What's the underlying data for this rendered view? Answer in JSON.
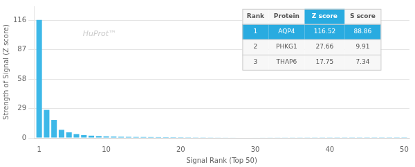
{
  "chart_data": {
    "type": "bar",
    "x": [
      1,
      2,
      3,
      4,
      5,
      6,
      7,
      8,
      9,
      10,
      11,
      12,
      13,
      14,
      15,
      16,
      17,
      18,
      19,
      20,
      21,
      22,
      23,
      24,
      25,
      26,
      27,
      28,
      29,
      30,
      31,
      32,
      33,
      34,
      35,
      36,
      37,
      38,
      39,
      40,
      41,
      42,
      43,
      44,
      45,
      46,
      47,
      48,
      49,
      50
    ],
    "values": [
      116.52,
      27.66,
      17.75,
      8.0,
      5.5,
      3.8,
      2.8,
      2.2,
      1.8,
      1.5,
      1.3,
      1.1,
      1.0,
      0.9,
      0.85,
      0.8,
      0.75,
      0.7,
      0.65,
      0.6,
      0.55,
      0.5,
      0.48,
      0.45,
      0.42,
      0.4,
      0.38,
      0.36,
      0.34,
      0.32,
      0.3,
      0.28,
      0.27,
      0.26,
      0.25,
      0.24,
      0.23,
      0.22,
      0.21,
      0.2,
      0.19,
      0.19,
      0.18,
      0.18,
      0.17,
      0.17,
      0.16,
      0.16,
      0.15,
      0.14
    ],
    "color": "#3db8e8",
    "xlabel": "Signal Rank (Top 50)",
    "ylabel": "Strength of Signal (Z score)",
    "xlim": [
      0.3,
      50.7
    ],
    "xticks": [
      1,
      10,
      20,
      30,
      40,
      50
    ],
    "ylim": [
      0,
      130
    ],
    "yticks": [
      0,
      29,
      58,
      87,
      116
    ],
    "grid": "y",
    "annotations": [
      {
        "text": "HuProt™"
      }
    ],
    "table": {
      "header": [
        "Rank",
        "Protein",
        "Z score",
        "S score"
      ],
      "rows": [
        [
          "1",
          "AQP4",
          "116.52",
          "88.86"
        ],
        [
          "2",
          "PHKG1",
          "27.66",
          "9.91"
        ],
        [
          "3",
          "THAP6",
          "17.75",
          "7.34"
        ]
      ]
    }
  }
}
